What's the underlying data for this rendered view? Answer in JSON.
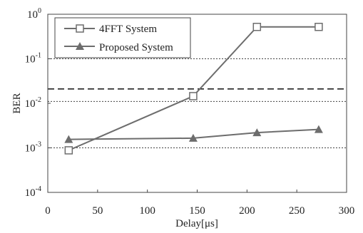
{
  "chart_data": {
    "type": "line",
    "title": "",
    "xlabel": "Delay[μs]",
    "ylabel": "BER",
    "xlim": [
      0,
      300
    ],
    "ylim": [
      0.0001,
      1
    ],
    "yscale": "log",
    "x_ticks": [
      0,
      50,
      100,
      150,
      200,
      250,
      300
    ],
    "x_tick_labels": [
      "0",
      "50",
      "100",
      "150",
      "200",
      "250",
      "300"
    ],
    "y_ticks": [
      0.0001,
      0.001,
      0.01,
      0.1,
      1
    ],
    "y_tick_labels": [
      {
        "base": "10",
        "exp": "-4"
      },
      {
        "base": "10",
        "exp": "-3"
      },
      {
        "base": "10",
        "exp": "-2"
      },
      {
        "base": "10",
        "exp": "-1"
      },
      {
        "base": "10",
        "exp": "0"
      }
    ],
    "grid": {
      "dotted_y": [
        0.001,
        0.011,
        0.1
      ],
      "dashed_y": [
        0.021
      ]
    },
    "legend": {
      "position": "top-left"
    },
    "series": [
      {
        "name": "4FFT System",
        "marker": "square-open",
        "color": "#6d6d6d",
        "x": [
          21,
          146,
          210,
          272
        ],
        "y": [
          0.00088,
          0.0145,
          0.52,
          0.52
        ]
      },
      {
        "name": "Proposed System",
        "marker": "triangle-filled",
        "color": "#6d6d6d",
        "x": [
          21,
          146,
          210,
          272
        ],
        "y": [
          0.00155,
          0.00165,
          0.0022,
          0.0026
        ]
      }
    ]
  }
}
